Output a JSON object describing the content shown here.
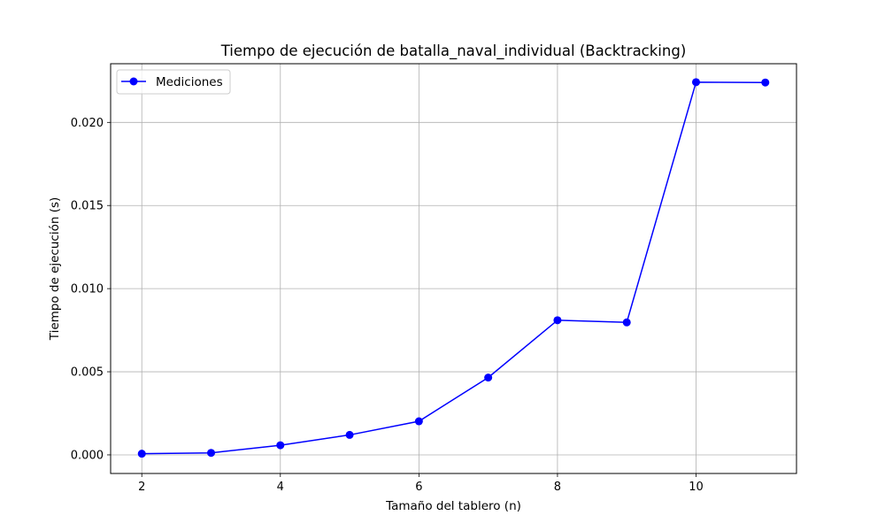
{
  "chart_data": {
    "type": "line",
    "title": "Tiempo de ejecución de batalla_naval_individual (Backtracking)",
    "xlabel": "Tamaño del tablero (n)",
    "ylabel": "Tiempo de ejecución (s)",
    "x": [
      2,
      3,
      4,
      5,
      6,
      7,
      8,
      9,
      10,
      11
    ],
    "series": [
      {
        "name": "Mediciones",
        "color": "#0000ff",
        "marker": "circle",
        "values": [
          7e-05,
          0.00012,
          0.00058,
          0.0012,
          0.00202,
          0.00465,
          0.0081,
          0.00797,
          0.02242,
          0.0224
        ]
      }
    ],
    "xlim": [
      1.55,
      11.45
    ],
    "ylim": [
      -0.00112,
      0.02353
    ],
    "xticks": [
      2,
      4,
      6,
      8,
      10
    ],
    "xtick_labels": [
      "2",
      "4",
      "6",
      "8",
      "10"
    ],
    "yticks": [
      0,
      0.005,
      0.01,
      0.015,
      0.02
    ],
    "ytick_labels": [
      "0.000",
      "0.005",
      "0.010",
      "0.015",
      "0.020"
    ],
    "grid": true,
    "legend": "upper-left"
  }
}
